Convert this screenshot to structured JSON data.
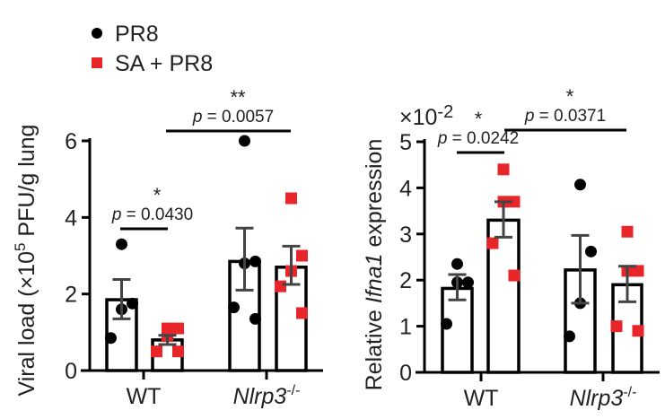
{
  "legend": [
    {
      "label": "PR8",
      "marker": "circle",
      "color": "#000000"
    },
    {
      "label": "SA + PR8",
      "marker": "square",
      "color": "#e8262a"
    }
  ],
  "chart_data": [
    {
      "type": "bar",
      "ylabel_pre": "Viral load (×10",
      "ylabel_sup": "5",
      "ylabel_post": " PFU/g lung",
      "ylim": [
        0,
        6
      ],
      "yticks": [
        "0",
        "2",
        "4",
        "6"
      ],
      "categories": [
        "WT",
        "Nlrp3"
      ],
      "category_sup": [
        "",
        "-/-"
      ],
      "series": [
        {
          "name": "PR8",
          "means": [
            1.85,
            2.85
          ],
          "sem_low": [
            1.35,
            2.1
          ],
          "sem_high": [
            2.38,
            3.72
          ],
          "points": [
            [
              3.3,
              1.75,
              1.6,
              0.85
            ],
            [
              6.0,
              2.85,
              2.8,
              1.65,
              1.35
            ]
          ]
        },
        {
          "name": "SA + PR8",
          "means": [
            0.8,
            2.7
          ],
          "sem_low": [
            0.68,
            2.25
          ],
          "sem_high": [
            0.92,
            3.25
          ],
          "points": [
            [
              1.1,
              1.1,
              0.9,
              0.5,
              0.5
            ],
            [
              4.5,
              3.0,
              2.6,
              2.2,
              1.5
            ]
          ]
        }
      ],
      "annotations": [
        {
          "stars": "*",
          "p": "0.0430"
        },
        {
          "stars": "**",
          "p": "0.0057"
        }
      ]
    },
    {
      "type": "bar",
      "ylabel_pre": "Relative ",
      "ylabel_italic": "Ifna1",
      "ylabel_post": " expression",
      "multiplier": "×10",
      "multiplier_sup": "-2",
      "ylim": [
        0,
        5
      ],
      "yticks": [
        "0",
        "1",
        "2",
        "3",
        "4",
        "5"
      ],
      "categories": [
        "WT",
        "Nlrp3"
      ],
      "category_sup": [
        "",
        "-/-"
      ],
      "series": [
        {
          "name": "PR8",
          "means": [
            1.82,
            2.22
          ],
          "sem_low": [
            1.57,
            1.5
          ],
          "sem_high": [
            2.12,
            2.97
          ],
          "points": [
            [
              2.35,
              1.95,
              1.95,
              1.05
            ],
            [
              4.07,
              2.62,
              1.5,
              0.78
            ]
          ]
        },
        {
          "name": "SA + PR8",
          "means": [
            3.3,
            1.9
          ],
          "sem_low": [
            2.93,
            1.53
          ],
          "sem_high": [
            3.7,
            2.3
          ],
          "points": [
            [
              4.4,
              3.7,
              3.7,
              2.8,
              2.1
            ],
            [
              3.05,
              2.2,
              2.2,
              1.0,
              0.9
            ]
          ]
        }
      ],
      "annotations": [
        {
          "stars": "*",
          "p": "0.0242"
        },
        {
          "stars": "*",
          "p": "0.0371"
        }
      ]
    }
  ]
}
